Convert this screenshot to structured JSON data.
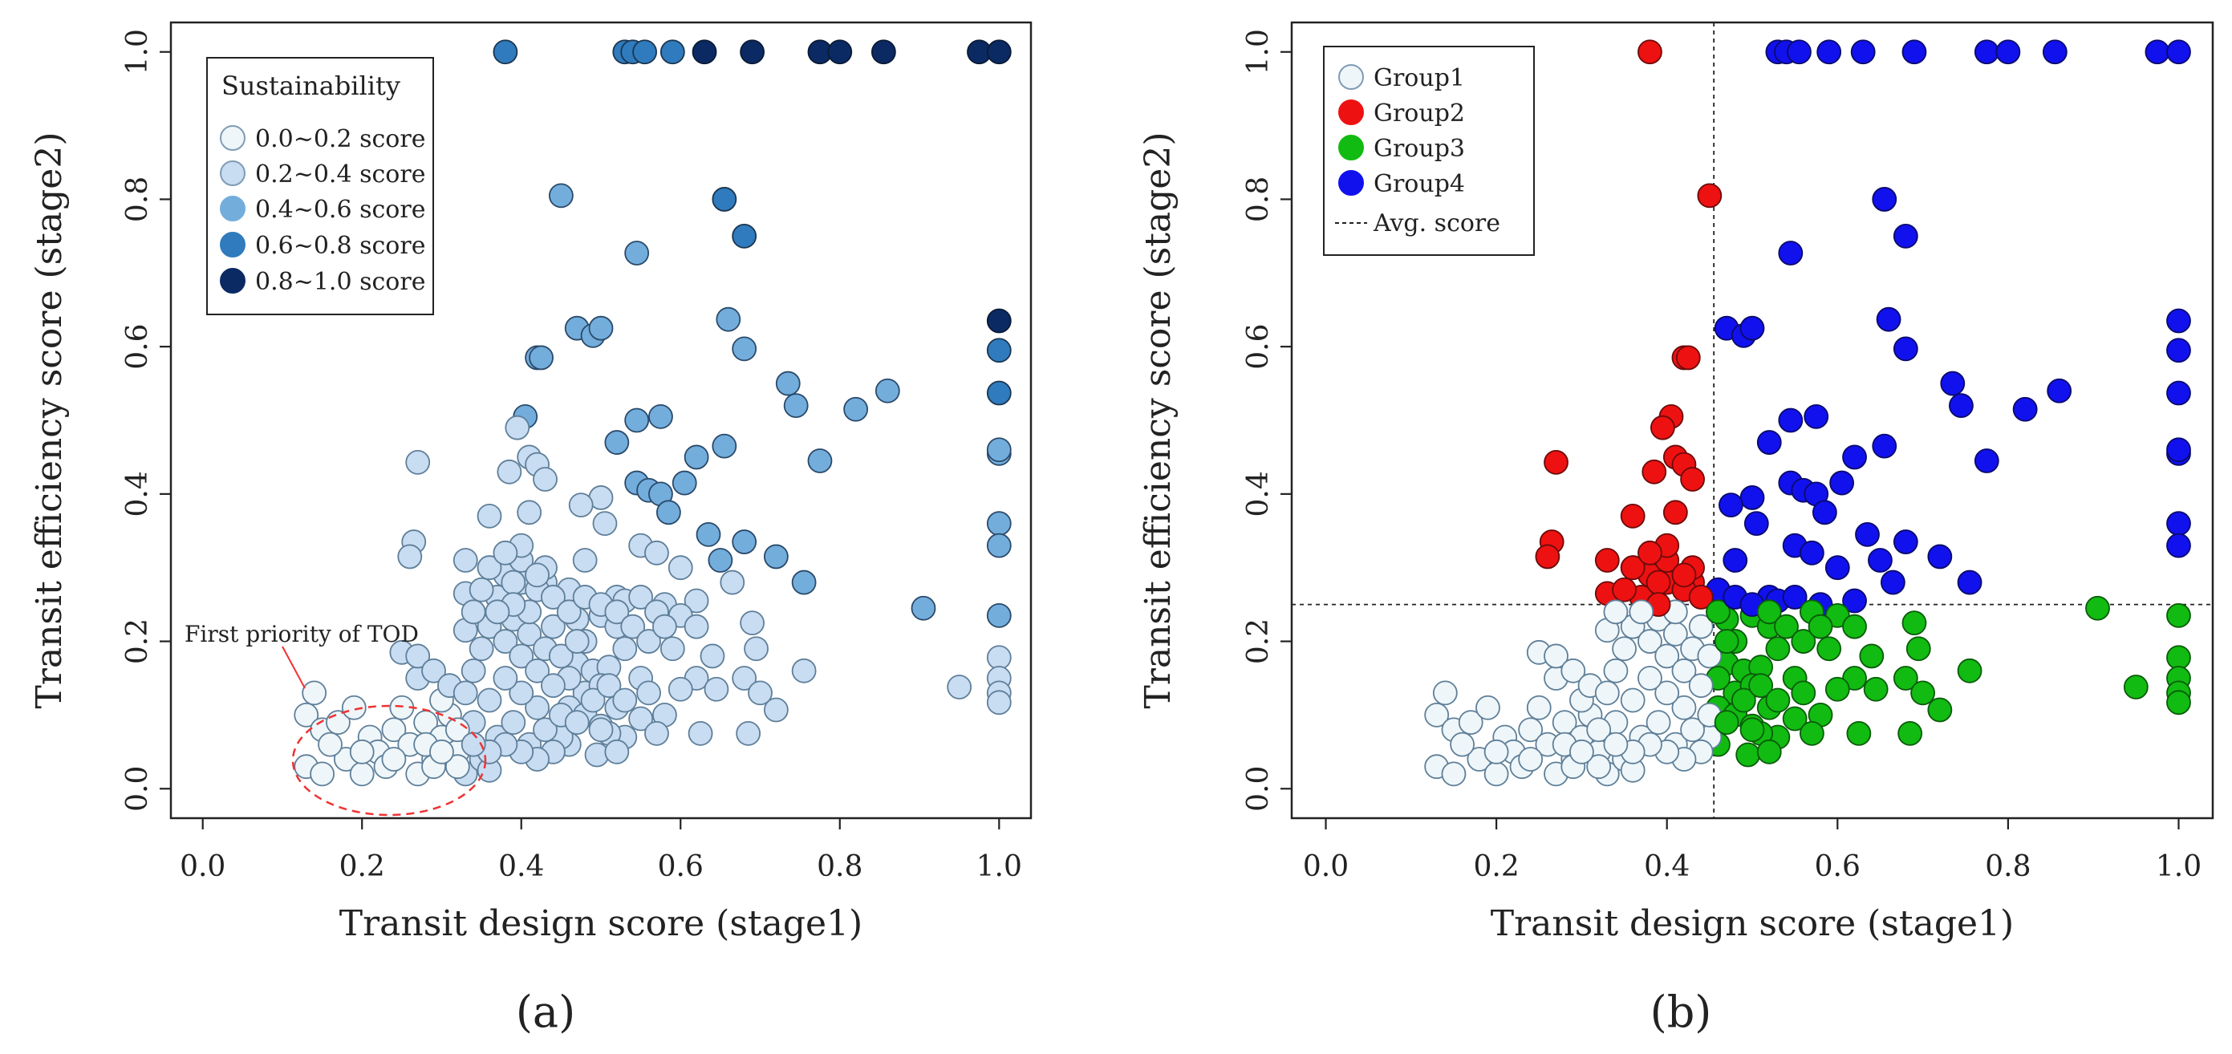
{
  "chart_data": [
    {
      "panel_label": "(a)",
      "type": "scatter",
      "title": "",
      "xlabel": "Transit design score (stage1)",
      "ylabel": "Transit efficiency score (stage2)",
      "xlim": [
        -0.04,
        1.04
      ],
      "ylim": [
        -0.04,
        1.04
      ],
      "xticks": [
        "0.0",
        "0.2",
        "0.4",
        "0.6",
        "0.8",
        "1.0"
      ],
      "yticks": [
        "0.0",
        "0.2",
        "0.4",
        "0.6",
        "0.8",
        "1.0"
      ],
      "legend": {
        "title": "Sustainability",
        "position": "top-left",
        "entries": [
          {
            "label": "0.0~0.2 score",
            "color": "#eef6f9"
          },
          {
            "label": "0.2~0.4 score",
            "color": "#c8dcf2"
          },
          {
            "label": "0.4~0.6 score",
            "color": "#73addc"
          },
          {
            "label": "0.6~0.8 score",
            "color": "#2f7bbd"
          },
          {
            "label": "0.8~1.0 score",
            "color": "#0b2a63"
          }
        ]
      },
      "annotation": {
        "text": "First priority of TOD",
        "target_x": 0.21,
        "target_y": 0.07
      }
    },
    {
      "panel_label": "(b)",
      "type": "scatter",
      "title": "",
      "xlabel": "Transit design score (stage1)",
      "ylabel": "Transit efficiency score (stage2)",
      "xlim": [
        -0.04,
        1.04
      ],
      "ylim": [
        -0.04,
        1.04
      ],
      "xticks": [
        "0.0",
        "0.2",
        "0.4",
        "0.6",
        "0.8",
        "1.0"
      ],
      "yticks": [
        "0.0",
        "0.2",
        "0.4",
        "0.6",
        "0.8",
        "1.0"
      ],
      "avg_x": 0.455,
      "avg_y": 0.25,
      "legend": {
        "position": "top-left",
        "entries": [
          {
            "label": "Group1",
            "color": "#eef6f9"
          },
          {
            "label": "Group2",
            "color": "#ee1111"
          },
          {
            "label": "Group3",
            "color": "#11bb11"
          },
          {
            "label": "Group4",
            "color": "#1111ee"
          },
          {
            "label": "Avg. score",
            "color": "#222222"
          }
        ]
      }
    }
  ],
  "points": [
    [
      0.38,
      1.0
    ],
    [
      0.53,
      1.0
    ],
    [
      0.54,
      1.0
    ],
    [
      0.555,
      1.0
    ],
    [
      0.59,
      1.0
    ],
    [
      0.63,
      1.0
    ],
    [
      0.69,
      1.0
    ],
    [
      0.775,
      1.0
    ],
    [
      0.8,
      1.0
    ],
    [
      0.855,
      1.0
    ],
    [
      0.975,
      1.0
    ],
    [
      1.0,
      1.0
    ],
    [
      0.45,
      0.805
    ],
    [
      0.655,
      0.8
    ],
    [
      0.68,
      0.75
    ],
    [
      0.545,
      0.727
    ],
    [
      1.0,
      0.635
    ],
    [
      0.47,
      0.625
    ],
    [
      0.49,
      0.615
    ],
    [
      0.5,
      0.625
    ],
    [
      0.66,
      0.637
    ],
    [
      0.68,
      0.597
    ],
    [
      1.0,
      0.595
    ],
    [
      0.42,
      0.585
    ],
    [
      0.425,
      0.585
    ],
    [
      0.735,
      0.55
    ],
    [
      0.86,
      0.54
    ],
    [
      1.0,
      0.537
    ],
    [
      0.745,
      0.52
    ],
    [
      0.82,
      0.515
    ],
    [
      0.545,
      0.5
    ],
    [
      0.575,
      0.505
    ],
    [
      0.405,
      0.505
    ],
    [
      0.395,
      0.49
    ],
    [
      0.52,
      0.47
    ],
    [
      0.655,
      0.465
    ],
    [
      1.0,
      0.455
    ],
    [
      1.0,
      0.46
    ],
    [
      0.775,
      0.445
    ],
    [
      0.27,
      0.443
    ],
    [
      0.41,
      0.45
    ],
    [
      0.62,
      0.45
    ],
    [
      0.42,
      0.44
    ],
    [
      0.385,
      0.43
    ],
    [
      0.43,
      0.42
    ],
    [
      0.545,
      0.415
    ],
    [
      0.56,
      0.405
    ],
    [
      0.575,
      0.4
    ],
    [
      0.605,
      0.415
    ],
    [
      0.5,
      0.395
    ],
    [
      0.475,
      0.385
    ],
    [
      0.585,
      0.375
    ],
    [
      0.36,
      0.37
    ],
    [
      0.41,
      0.375
    ],
    [
      0.265,
      0.335
    ],
    [
      0.26,
      0.315
    ],
    [
      0.505,
      0.36
    ],
    [
      0.48,
      0.31
    ],
    [
      0.33,
      0.31
    ],
    [
      1.0,
      0.36
    ],
    [
      0.635,
      0.345
    ],
    [
      0.68,
      0.335
    ],
    [
      0.55,
      0.33
    ],
    [
      1.0,
      0.33
    ],
    [
      0.72,
      0.315
    ],
    [
      0.57,
      0.32
    ],
    [
      0.6,
      0.3
    ],
    [
      0.65,
      0.31
    ],
    [
      0.33,
      0.265
    ],
    [
      0.36,
      0.3
    ],
    [
      0.38,
      0.29
    ],
    [
      0.4,
      0.28
    ],
    [
      0.43,
      0.28
    ],
    [
      0.46,
      0.27
    ],
    [
      0.52,
      0.26
    ],
    [
      0.53,
      0.255
    ],
    [
      0.58,
      0.25
    ],
    [
      0.62,
      0.255
    ],
    [
      0.665,
      0.28
    ],
    [
      0.755,
      0.28
    ],
    [
      0.905,
      0.245
    ],
    [
      0.47,
      0.23
    ],
    [
      0.5,
      0.235
    ],
    [
      0.52,
      0.22
    ],
    [
      0.6,
      0.235
    ],
    [
      0.62,
      0.22
    ],
    [
      0.69,
      0.225
    ],
    [
      1.0,
      0.235
    ],
    [
      0.48,
      0.2
    ],
    [
      0.53,
      0.19
    ],
    [
      0.59,
      0.19
    ],
    [
      0.64,
      0.18
    ],
    [
      0.695,
      0.19
    ],
    [
      1.0,
      0.178
    ],
    [
      0.47,
      0.17
    ],
    [
      0.49,
      0.16
    ],
    [
      0.51,
      0.165
    ],
    [
      0.55,
      0.15
    ],
    [
      0.62,
      0.15
    ],
    [
      0.68,
      0.15
    ],
    [
      0.755,
      0.16
    ],
    [
      1.0,
      0.15
    ],
    [
      0.95,
      0.138
    ],
    [
      0.48,
      0.13
    ],
    [
      0.5,
      0.14
    ],
    [
      0.56,
      0.13
    ],
    [
      0.6,
      0.135
    ],
    [
      0.645,
      0.135
    ],
    [
      0.7,
      0.13
    ],
    [
      1.0,
      0.13
    ],
    [
      1.0,
      0.117
    ],
    [
      0.46,
      0.11
    ],
    [
      0.48,
      0.1
    ],
    [
      0.52,
      0.11
    ],
    [
      0.55,
      0.095
    ],
    [
      0.58,
      0.1
    ],
    [
      0.72,
      0.107
    ],
    [
      0.5,
      0.085
    ],
    [
      0.53,
      0.07
    ],
    [
      0.57,
      0.075
    ],
    [
      0.625,
      0.075
    ],
    [
      0.685,
      0.075
    ],
    [
      0.46,
      0.06
    ],
    [
      0.495,
      0.046
    ],
    [
      0.51,
      0.075
    ],
    [
      0.45,
      0.07
    ],
    [
      0.14,
      0.13
    ],
    [
      0.13,
      0.1
    ],
    [
      0.15,
      0.08
    ],
    [
      0.17,
      0.09
    ],
    [
      0.19,
      0.11
    ],
    [
      0.21,
      0.07
    ],
    [
      0.22,
      0.05
    ],
    [
      0.24,
      0.08
    ],
    [
      0.25,
      0.11
    ],
    [
      0.26,
      0.06
    ],
    [
      0.28,
      0.09
    ],
    [
      0.29,
      0.04
    ],
    [
      0.3,
      0.07
    ],
    [
      0.31,
      0.1
    ],
    [
      0.32,
      0.05
    ],
    [
      0.13,
      0.03
    ],
    [
      0.15,
      0.02
    ],
    [
      0.18,
      0.04
    ],
    [
      0.2,
      0.02
    ],
    [
      0.23,
      0.03
    ],
    [
      0.27,
      0.02
    ],
    [
      0.29,
      0.03
    ],
    [
      0.33,
      0.02
    ],
    [
      0.35,
      0.04
    ],
    [
      0.36,
      0.025
    ],
    [
      0.16,
      0.06
    ],
    [
      0.2,
      0.05
    ],
    [
      0.24,
      0.04
    ],
    [
      0.28,
      0.06
    ],
    [
      0.3,
      0.12
    ],
    [
      0.27,
      0.15
    ],
    [
      0.25,
      0.185
    ],
    [
      0.27,
      0.18
    ],
    [
      0.29,
      0.16
    ],
    [
      0.31,
      0.14
    ],
    [
      0.33,
      0.13
    ],
    [
      0.34,
      0.16
    ],
    [
      0.35,
      0.19
    ],
    [
      0.33,
      0.215
    ],
    [
      0.36,
      0.22
    ],
    [
      0.38,
      0.2
    ],
    [
      0.39,
      0.23
    ],
    [
      0.4,
      0.18
    ],
    [
      0.41,
      0.21
    ],
    [
      0.42,
      0.16
    ],
    [
      0.43,
      0.19
    ],
    [
      0.44,
      0.22
    ],
    [
      0.45,
      0.18
    ],
    [
      0.46,
      0.15
    ],
    [
      0.47,
      0.2
    ],
    [
      0.44,
      0.14
    ],
    [
      0.42,
      0.11
    ],
    [
      0.4,
      0.13
    ],
    [
      0.38,
      0.15
    ],
    [
      0.36,
      0.12
    ],
    [
      0.34,
      0.09
    ],
    [
      0.32,
      0.08
    ],
    [
      0.37,
      0.07
    ],
    [
      0.39,
      0.09
    ],
    [
      0.41,
      0.06
    ],
    [
      0.43,
      0.08
    ],
    [
      0.45,
      0.1
    ],
    [
      0.44,
      0.05
    ],
    [
      0.42,
      0.04
    ],
    [
      0.4,
      0.05
    ],
    [
      0.38,
      0.06
    ],
    [
      0.36,
      0.05
    ],
    [
      0.34,
      0.06
    ],
    [
      0.32,
      0.03
    ],
    [
      0.3,
      0.05
    ],
    [
      0.37,
      0.26
    ],
    [
      0.39,
      0.28
    ],
    [
      0.4,
      0.31
    ],
    [
      0.42,
      0.27
    ],
    [
      0.43,
      0.3
    ],
    [
      0.41,
      0.24
    ],
    [
      0.39,
      0.25
    ],
    [
      0.37,
      0.24
    ],
    [
      0.35,
      0.27
    ],
    [
      0.36,
      0.3
    ],
    [
      0.34,
      0.24
    ],
    [
      0.4,
      0.33
    ],
    [
      0.38,
      0.32
    ],
    [
      0.42,
      0.29
    ],
    [
      0.44,
      0.26
    ],
    [
      0.46,
      0.24
    ],
    [
      0.48,
      0.26
    ],
    [
      0.5,
      0.25
    ],
    [
      0.52,
      0.24
    ],
    [
      0.55,
      0.26
    ],
    [
      0.57,
      0.24
    ],
    [
      0.54,
      0.22
    ],
    [
      0.56,
      0.2
    ],
    [
      0.58,
      0.22
    ],
    [
      0.49,
      0.12
    ],
    [
      0.51,
      0.14
    ],
    [
      0.53,
      0.12
    ],
    [
      0.47,
      0.09
    ],
    [
      0.5,
      0.08
    ],
    [
      0.52,
      0.05
    ]
  ]
}
